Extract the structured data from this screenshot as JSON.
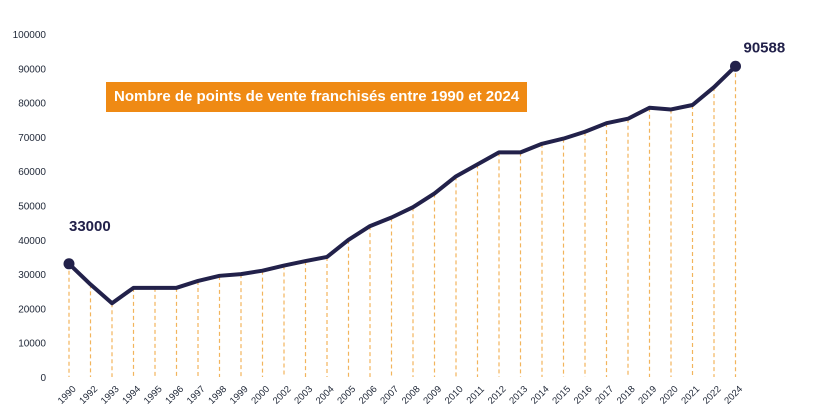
{
  "chart_data": {
    "type": "line",
    "title": "Nombre de points de vente franchisés entre 1990 et 2024",
    "xlabel": "",
    "ylabel": "",
    "categories": [
      "1990",
      "1992",
      "1993",
      "1994",
      "1995",
      "1996",
      "1997",
      "1998",
      "1999",
      "2000",
      "2002",
      "2003",
      "2004",
      "2005",
      "2006",
      "2007",
      "2008",
      "2009",
      "2010",
      "2011",
      "2012",
      "2013",
      "2014",
      "2015",
      "2016",
      "2017",
      "2018",
      "2019",
      "2020",
      "2021",
      "2022",
      "2024"
    ],
    "values": [
      33000,
      27000,
      21500,
      26000,
      26000,
      26000,
      28000,
      29500,
      30000,
      31000,
      32500,
      33800,
      35000,
      40000,
      44000,
      46500,
      49500,
      53500,
      58500,
      62000,
      65500,
      65500,
      68000,
      69500,
      71500,
      74000,
      75300,
      78500,
      78000,
      79300,
      84500,
      90588
    ],
    "ylim": [
      0,
      100000
    ],
    "yticks": [
      0,
      10000,
      20000,
      30000,
      40000,
      50000,
      60000,
      70000,
      80000,
      90000,
      100000
    ],
    "grid": false,
    "annotations": [
      {
        "index": 0,
        "text": "33000"
      },
      {
        "index": 31,
        "text": "90588"
      }
    ],
    "colors": {
      "line": "#22214a",
      "droplines": "#f2b45c",
      "title_bg": "#ef8a14",
      "title_text": "#ffffff"
    }
  }
}
